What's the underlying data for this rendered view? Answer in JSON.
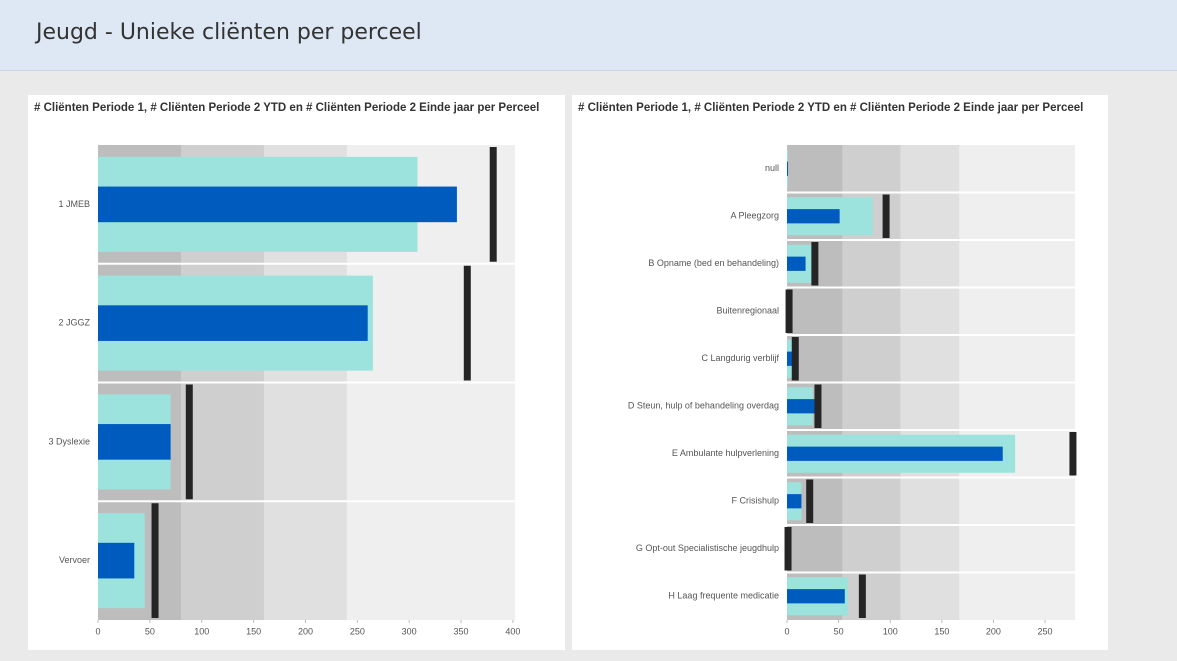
{
  "header": {
    "title": "Jeugd - Unieke cliënten per perceel"
  },
  "chart_data": [
    {
      "type": "bullet",
      "title": "# Cliënten Periode 1, # Cliënten Periode 2 YTD en # Cliënten Periode 2 Einde jaar per Perceel",
      "categories": [
        "1 JMEB",
        "2 JGGZ",
        "3 Dyslexie",
        "Vervoer"
      ],
      "series": [
        {
          "role": "range",
          "color": "#9de3dd",
          "values": [
            308,
            265,
            70,
            45
          ]
        },
        {
          "role": "bar",
          "color": "#005bbf",
          "values": [
            346,
            260,
            70,
            35
          ]
        },
        {
          "role": "target",
          "color": "#252525",
          "values": [
            381,
            356,
            88,
            55
          ]
        }
      ],
      "bands": [
        80,
        160,
        240,
        402
      ],
      "band_colors": [
        "#bdbdbd",
        "#cfcfcf",
        "#e0e0e0",
        "#efefef"
      ],
      "xlim": [
        0,
        402
      ],
      "xticks": [
        0,
        50,
        100,
        150,
        200,
        250,
        300,
        350,
        400
      ]
    },
    {
      "type": "bullet",
      "title": "# Cliënten Periode 1, # Cliënten Periode 2 YTD en # Cliënten Periode 2 Einde jaar per Perceel",
      "categories": [
        "null",
        "A Pleegzorg",
        "B Opname (bed en behandeling)",
        "Buitenregionaal",
        "C Langdurig verblijf",
        "D Steun, hulp of behandeling overdag",
        "E Ambulante hulpverlening",
        "F Crisishulp",
        "G Opt-out Specialistische jeugdhulp",
        "H Laag frequente medicatie"
      ],
      "series": [
        {
          "role": "range",
          "color": "#9de3dd",
          "values": [
            1,
            83,
            24,
            3,
            8,
            25,
            221,
            14,
            0,
            59
          ]
        },
        {
          "role": "bar",
          "color": "#005bbf",
          "values": [
            1,
            51,
            18,
            2,
            7,
            27,
            209,
            14,
            0,
            56
          ]
        },
        {
          "role": "target",
          "color": "#252525",
          "values": [
            null,
            96,
            27,
            2,
            8,
            30,
            277,
            22,
            1,
            73
          ]
        }
      ],
      "bands": [
        54,
        110,
        167,
        279
      ],
      "band_colors": [
        "#bdbdbd",
        "#cfcfcf",
        "#e0e0e0",
        "#efefef"
      ],
      "xlim": [
        0,
        279
      ],
      "xticks": [
        0,
        50,
        100,
        150,
        200,
        250
      ]
    }
  ]
}
